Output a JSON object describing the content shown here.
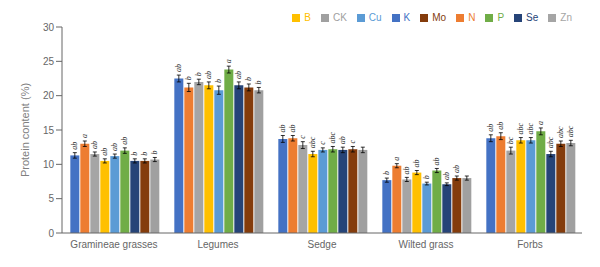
{
  "chart_data": {
    "type": "bar",
    "ylabel": "Protein content (%)",
    "categories": [
      "Gramineae grasses",
      "Legumes",
      "Sedge",
      "Wilted grass",
      "Forbs"
    ],
    "series": [
      {
        "name": "K",
        "color": "#4472C4",
        "values": [
          11.3,
          22.5,
          13.7,
          7.7,
          13.8
        ],
        "errors": [
          0.4,
          0.5,
          0.5,
          0.3,
          0.5
        ],
        "annotations": [
          "ab",
          "ab",
          "ab",
          "b",
          "ab"
        ]
      },
      {
        "name": "N",
        "color": "#ED7D31",
        "values": [
          13.0,
          21.2,
          13.8,
          9.8,
          14.1
        ],
        "errors": [
          0.4,
          0.6,
          0.4,
          0.3,
          0.5
        ],
        "annotations": [
          "a",
          "b",
          "ab",
          "a",
          "ab"
        ]
      },
      {
        "name": "Zn",
        "color": "#A5A5A5",
        "values": [
          11.5,
          22.0,
          12.8,
          7.8,
          12.0
        ],
        "errors": [
          0.3,
          0.4,
          0.5,
          0.3,
          0.5
        ],
        "annotations": [
          "ab",
          "b",
          "c",
          "ab",
          "bc"
        ]
      },
      {
        "name": "B",
        "color": "#FFC000",
        "values": [
          10.5,
          21.5,
          11.5,
          8.8,
          13.5
        ],
        "errors": [
          0.3,
          0.5,
          0.4,
          0.3,
          0.4
        ],
        "annotations": [
          "ab",
          "ab",
          "abc",
          "ab",
          "abc"
        ]
      },
      {
        "name": "Cu",
        "color": "#5B9BD5",
        "values": [
          11.2,
          20.8,
          12.1,
          7.2,
          13.5
        ],
        "errors": [
          0.3,
          0.6,
          0.3,
          0.2,
          0.4
        ],
        "annotations": [
          "ab",
          "b",
          "c",
          "b",
          "abc"
        ]
      },
      {
        "name": "P",
        "color": "#70AD47",
        "values": [
          12.0,
          23.8,
          12.2,
          9.1,
          14.8
        ],
        "errors": [
          0.4,
          0.5,
          0.4,
          0.3,
          0.5
        ],
        "annotations": [
          "ab",
          "a",
          "abc",
          "ab",
          "a"
        ]
      },
      {
        "name": "Se",
        "color": "#264478",
        "values": [
          10.5,
          21.5,
          12.1,
          7.1,
          11.5
        ],
        "errors": [
          0.3,
          0.5,
          0.4,
          0.2,
          0.4
        ],
        "annotations": [
          "b",
          "ab",
          "ab",
          "ab",
          "abc"
        ]
      },
      {
        "name": "Mo",
        "color": "#843C0C",
        "values": [
          10.5,
          21.2,
          12.2,
          8.0,
          13.0
        ],
        "errors": [
          0.3,
          0.5,
          0.4,
          0.3,
          0.4
        ],
        "annotations": [
          "b",
          "b",
          "c",
          "ab",
          "abc"
        ]
      },
      {
        "name": "CK",
        "color": "#A0A0A0",
        "values": [
          10.7,
          20.8,
          12.1,
          8.0,
          13.1
        ],
        "errors": [
          0.3,
          0.4,
          0.4,
          0.3,
          0.4
        ],
        "annotations": [
          "b",
          "b",
          null,
          null,
          "abc"
        ]
      }
    ],
    "ylim": [
      0,
      30
    ],
    "yticks": [
      0,
      5,
      10,
      15,
      20,
      25,
      30
    ],
    "grid": false,
    "legend": "upper right"
  }
}
